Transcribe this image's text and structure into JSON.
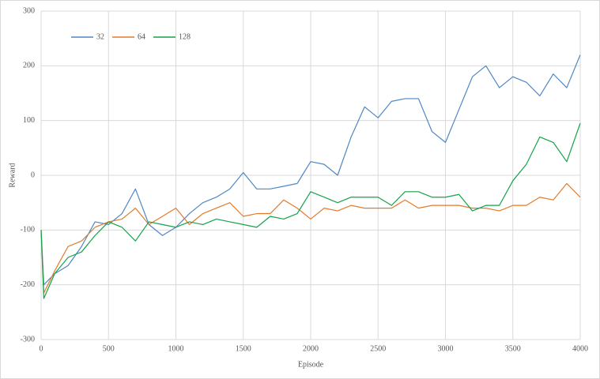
{
  "chart_data": {
    "type": "line",
    "x_label": "Episode",
    "y_label": "Reward",
    "x": [
      0,
      20,
      100,
      200,
      300,
      400,
      500,
      600,
      700,
      800,
      900,
      1000,
      1100,
      1200,
      1300,
      1400,
      1500,
      1600,
      1700,
      1800,
      1900,
      2000,
      2100,
      2200,
      2300,
      2400,
      2500,
      2600,
      2700,
      2800,
      2900,
      3000,
      3100,
      3200,
      3300,
      3400,
      3500,
      3600,
      3700,
      3800,
      3900,
      4000
    ],
    "series": [
      {
        "name": "32",
        "color": "#4f87c4",
        "values": [
          -100,
          -200,
          -180,
          -165,
          -130,
          -85,
          -90,
          -70,
          -25,
          -90,
          -110,
          -95,
          -70,
          -50,
          -40,
          -25,
          5,
          -25,
          -25,
          -20,
          -15,
          25,
          20,
          0,
          70,
          125,
          105,
          135,
          140,
          140,
          80,
          60,
          120,
          180,
          200,
          160,
          180,
          170,
          145,
          185,
          160,
          220
        ]
      },
      {
        "name": "64",
        "color": "#e37b2c",
        "values": [
          -100,
          -215,
          -175,
          -130,
          -120,
          -95,
          -85,
          -80,
          -60,
          -90,
          -75,
          -60,
          -90,
          -70,
          -60,
          -50,
          -75,
          -70,
          -70,
          -45,
          -60,
          -80,
          -60,
          -65,
          -55,
          -60,
          -60,
          -60,
          -45,
          -60,
          -55,
          -55,
          -55,
          -60,
          -60,
          -65,
          -55,
          -55,
          -40,
          -45,
          -15,
          -40
        ]
      },
      {
        "name": "128",
        "color": "#13a34a",
        "values": [
          -100,
          -225,
          -180,
          -150,
          -140,
          -110,
          -85,
          -95,
          -120,
          -85,
          -90,
          -95,
          -85,
          -90,
          -80,
          -85,
          -90,
          -95,
          -75,
          -80,
          -70,
          -30,
          -40,
          -50,
          -40,
          -40,
          -40,
          -55,
          -30,
          -30,
          -40,
          -40,
          -35,
          -65,
          -55,
          -55,
          -10,
          20,
          70,
          60,
          25,
          95
        ]
      }
    ],
    "xlim": [
      0,
      4000
    ],
    "xticks": [
      0,
      500,
      1000,
      1500,
      2000,
      2500,
      3000,
      3500,
      4000
    ],
    "ylim": [
      -300,
      300
    ],
    "yticks": [
      -300,
      -200,
      -100,
      0,
      100,
      200,
      300
    ],
    "grid": true,
    "legend": "top-left"
  }
}
